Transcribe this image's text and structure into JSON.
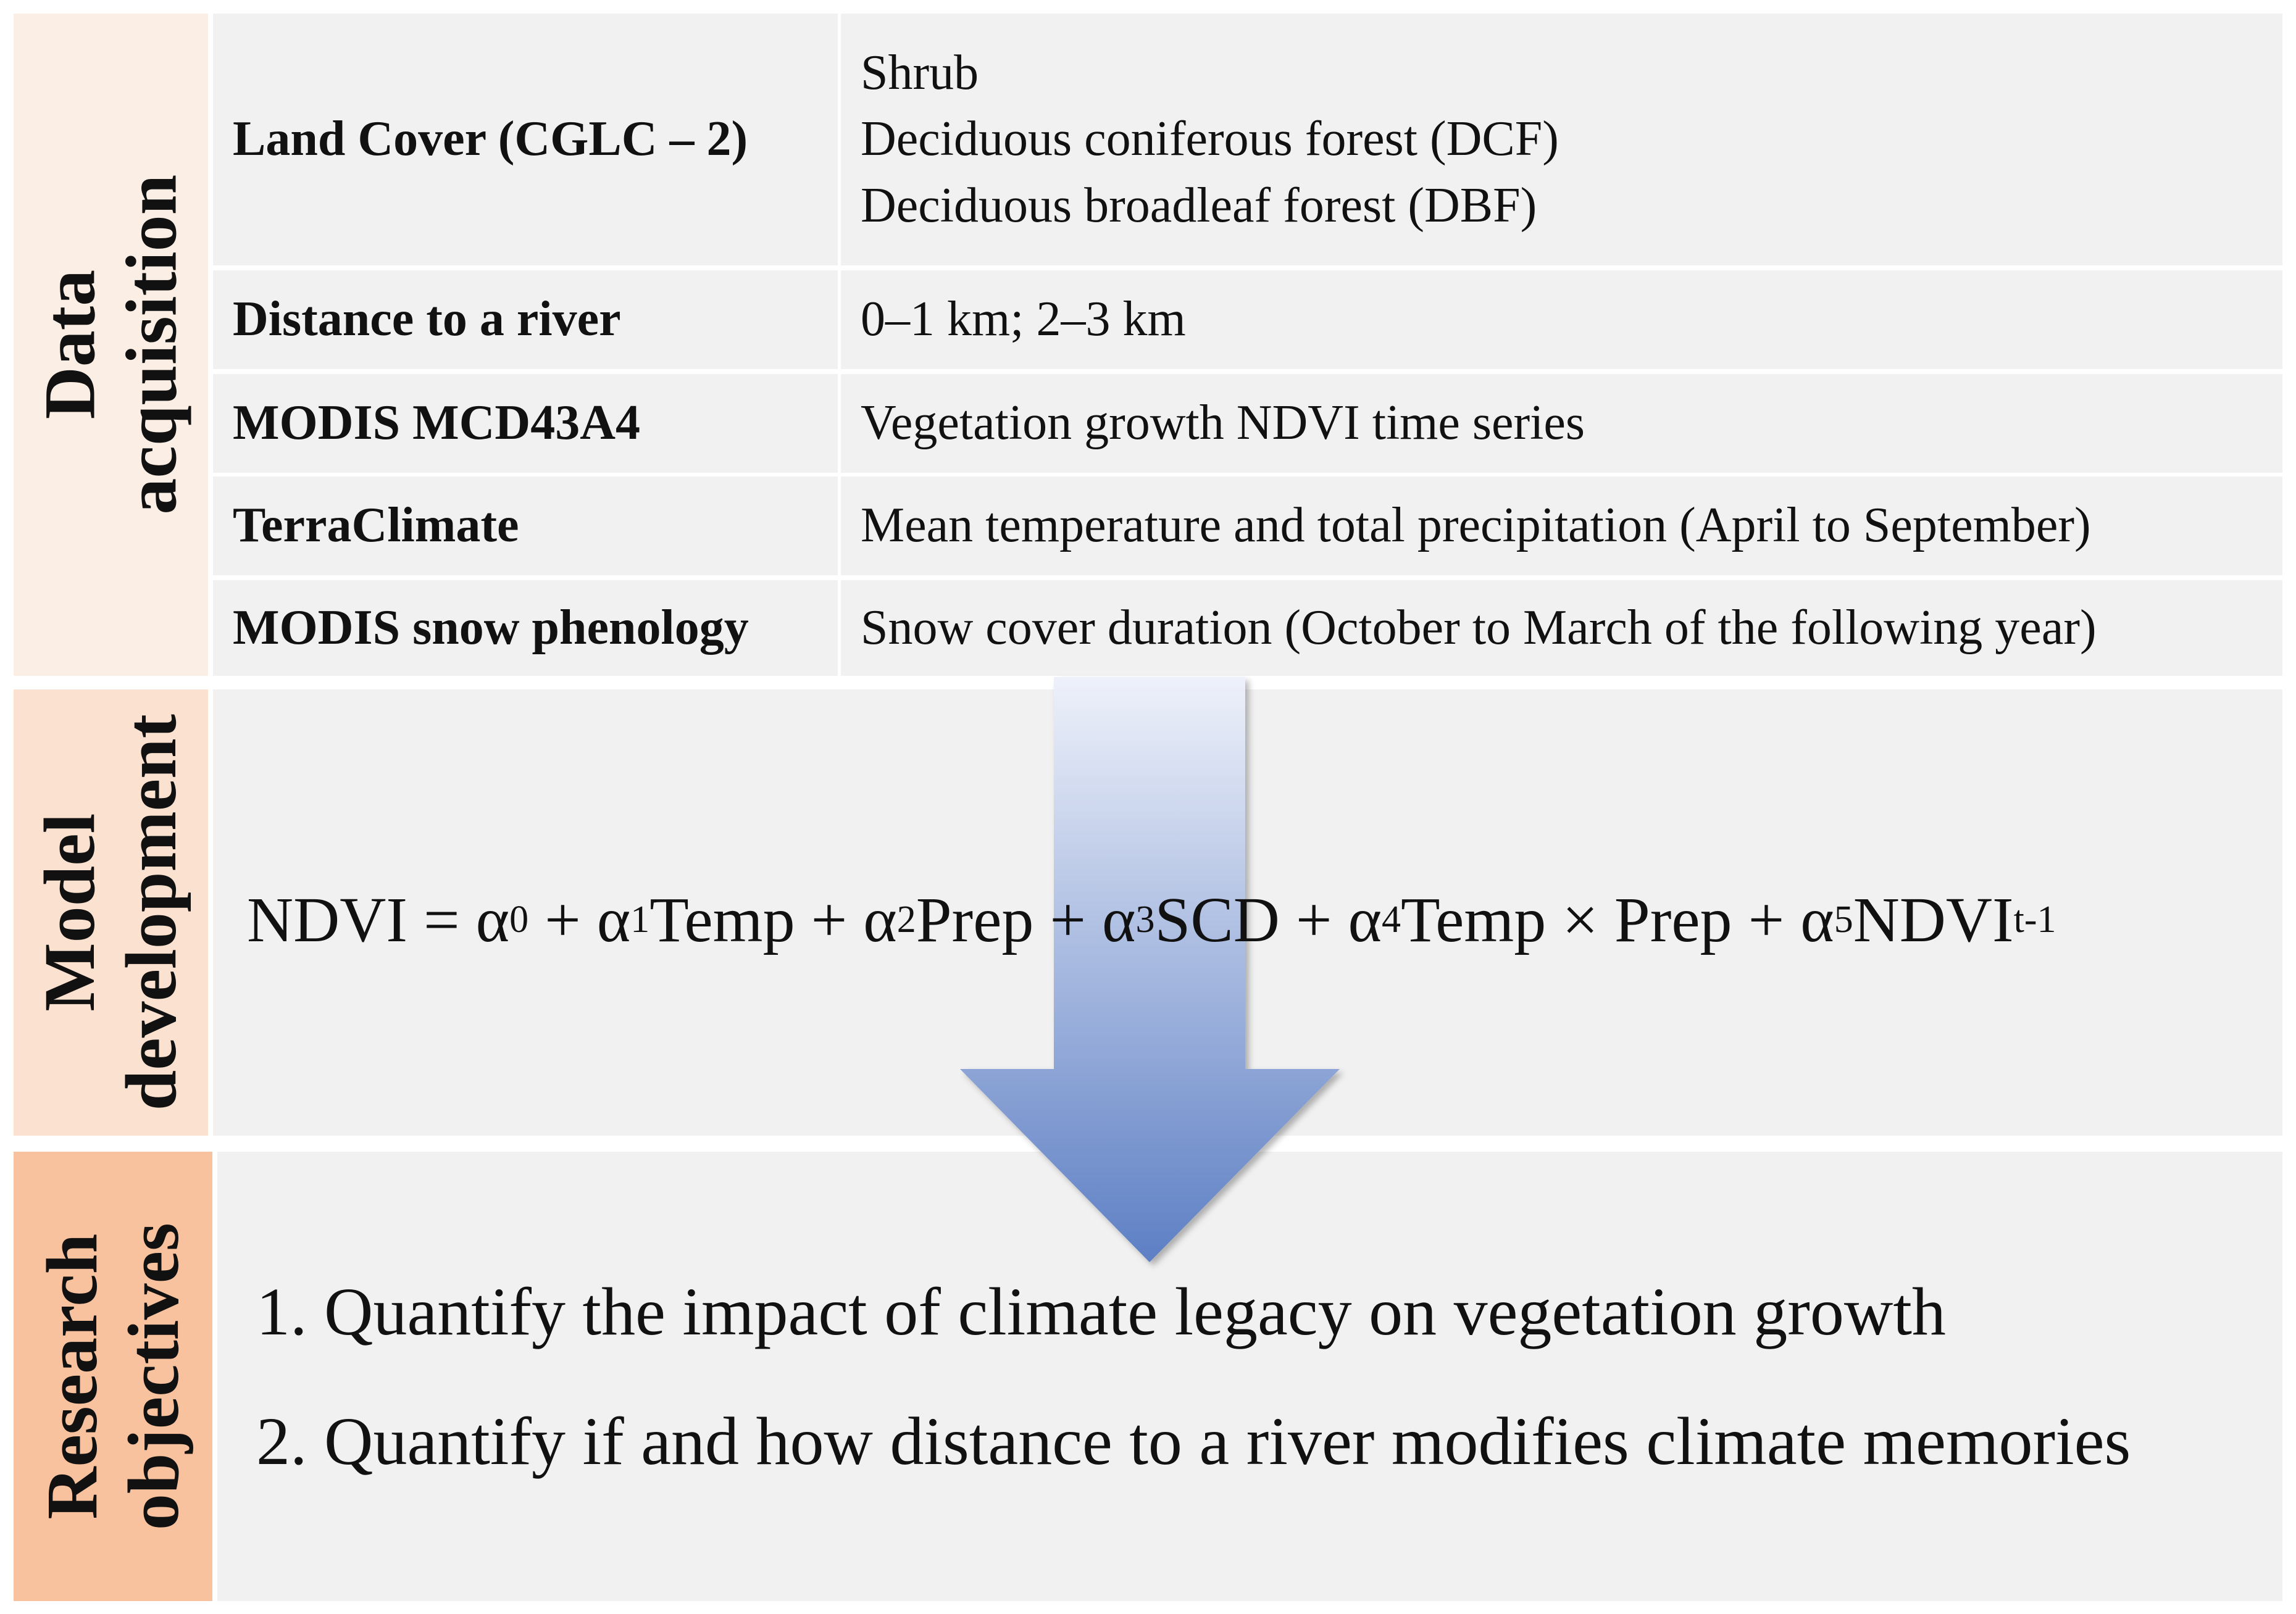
{
  "sections": {
    "data_acquisition": {
      "lines": [
        "Data",
        "acquisition"
      ],
      "color": "#fbeee4"
    },
    "model_development": {
      "lines": [
        "Model",
        "development"
      ],
      "color": "#fbe1cf"
    },
    "research_objectives": {
      "lines": [
        "Research",
        "objectives"
      ],
      "color": "#f7c29d"
    }
  },
  "data_table": [
    {
      "source": "Land Cover (CGLC – 2)",
      "details": [
        "Shrub",
        "Deciduous coniferous forest (DCF)",
        "Deciduous broadleaf forest (DBF)"
      ]
    },
    {
      "source": "Distance to a river",
      "details": [
        "0–1 km; 2–3 km"
      ]
    },
    {
      "source": "MODIS MCD43A4",
      "details": [
        "Vegetation growth NDVI time series"
      ]
    },
    {
      "source": "TerraClimate",
      "details": [
        "Mean temperature and total precipitation (April to September)"
      ]
    },
    {
      "source": "MODIS snow phenology",
      "details": [
        "Snow cover duration (October to March of the following year)"
      ]
    }
  ],
  "model": {
    "formula": {
      "lhs": "NDVI =",
      "terms": [
        {
          "prefix": " α",
          "sub": "0",
          "text": ""
        },
        {
          "prefix": " + α",
          "sub": "1",
          "text": "Temp"
        },
        {
          "prefix": " + α",
          "sub": "2",
          "text": "Prep"
        },
        {
          "prefix": " + α",
          "sub": "3",
          "text": "SCD"
        },
        {
          "prefix": " + α",
          "sub": "4",
          "text": "Temp × Prep"
        },
        {
          "prefix": " + α",
          "sub": "5",
          "text": "NDVI"
        }
      ],
      "final_sub": "t-1"
    }
  },
  "objectives": [
    "1. Quantify the impact of climate legacy on vegetation growth",
    "2. Quantify if and how distance to a river modifies climate memories"
  ],
  "colors": {
    "panel": "#f1f1f1",
    "arrow_top": "#eef1fa",
    "arrow_bottom": "#5d7fc4"
  }
}
